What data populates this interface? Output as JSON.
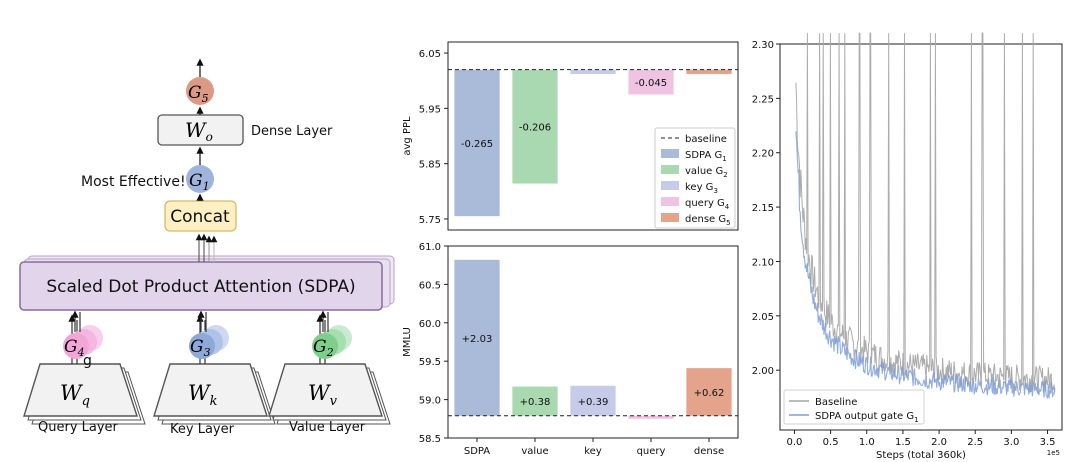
{
  "diagram": {
    "layers": {
      "query": "Query Layer",
      "key": "Key Layer",
      "value": "Value Layer",
      "dense": "Dense Layer"
    },
    "weights": {
      "wq": "W",
      "wq_sub": "q",
      "wk": "W",
      "wk_sub": "k",
      "wv": "W",
      "wv_sub": "v",
      "wo": "W",
      "wo_sub": "o"
    },
    "gates": {
      "g1": "G",
      "g1_sub": "1",
      "g2": "G",
      "g2_sub": "2",
      "g3": "G",
      "g3_sub": "3",
      "g4": "G",
      "g4_sub": "4",
      "g5": "G",
      "g5_sub": "5"
    },
    "stray_glyph": "g",
    "sdpa_label": "Scaled Dot Product Attention (SDPA)",
    "concat_label": "Concat",
    "most_effective": "Most Effective!",
    "colors": {
      "g1": "#9fb4dc",
      "g2": "#7fcf8c",
      "g3": "#8ea8d8",
      "g4": "#f2a6d8",
      "g5": "#dc9a84",
      "sdpa": "#e2d4ea",
      "concat": "#fdf0c2"
    }
  },
  "chart_data": [
    {
      "type": "bar",
      "title": "",
      "ylabel": "avg PPL",
      "ylim": [
        5.73,
        6.07
      ],
      "yticks": [
        "5.75",
        "5.85",
        "5.95",
        "6.05"
      ],
      "ytick_values": [
        5.75,
        5.85,
        5.95,
        6.05
      ],
      "baseline": 6.02,
      "categories": [
        "SDPA",
        "value",
        "key",
        "query",
        "dense"
      ],
      "deltas": [
        -0.265,
        -0.206,
        -0.008,
        -0.045,
        -0.008
      ],
      "labels": [
        "-0.265",
        "-0.206",
        "",
        "-0.045",
        ""
      ],
      "colors": [
        "#a9bbd9",
        "#a9d9b0",
        "#c5cbe8",
        "#f1c3e3",
        "#e4a48c"
      ],
      "legend": [
        {
          "name": "baseline",
          "sub": ""
        },
        {
          "name": "SDPA G",
          "sub": "1"
        },
        {
          "name": "value G",
          "sub": "2"
        },
        {
          "name": "key G",
          "sub": "3"
        },
        {
          "name": "query G",
          "sub": "4"
        },
        {
          "name": "dense G",
          "sub": "5"
        }
      ]
    },
    {
      "type": "bar",
      "ylabel": "MMLU",
      "ylim": [
        58.5,
        61.0
      ],
      "yticks": [
        "58.5",
        "59.0",
        "59.5",
        "60.0",
        "60.5",
        "61.0"
      ],
      "ytick_values": [
        58.5,
        59.0,
        59.5,
        60.0,
        60.5,
        61.0
      ],
      "baseline": 58.79,
      "categories": [
        "SDPA",
        "value",
        "key",
        "query",
        "dense"
      ],
      "xtick_labels": [
        "SDPA",
        "value",
        "key",
        "query",
        "dense"
      ],
      "deltas": [
        2.03,
        0.38,
        0.39,
        -0.04,
        0.62
      ],
      "labels": [
        "+2.03",
        "+0.38",
        "+0.39",
        "",
        "+0.62"
      ],
      "colors": [
        "#a9bbd9",
        "#a9d9b0",
        "#c5cbe8",
        "#f1c3e3",
        "#e4a48c"
      ]
    },
    {
      "type": "line",
      "xlabel": "Steps (total 360k)",
      "x_multiplier": "1e5",
      "xlim": [
        -0.2,
        3.7
      ],
      "ylim": [
        1.945,
        2.3
      ],
      "xticks": [
        "0.0",
        "0.5",
        "1.0",
        "1.5",
        "2.0",
        "2.5",
        "3.0",
        "3.5"
      ],
      "xtick_values": [
        0.0,
        0.5,
        1.0,
        1.5,
        2.0,
        2.5,
        3.0,
        3.5
      ],
      "yticks": [
        "2.00",
        "2.05",
        "2.10",
        "2.15",
        "2.20",
        "2.25",
        "2.30"
      ],
      "ytick_values": [
        2.0,
        2.05,
        2.1,
        2.15,
        2.2,
        2.25,
        2.3
      ],
      "series": [
        {
          "name": "Baseline",
          "sub": "",
          "color": "#a3a3a3",
          "start": 2.3,
          "end": 1.978,
          "noise": 0.012,
          "spikes": [
            0.18,
            0.35,
            0.4,
            0.5,
            0.62,
            0.7,
            0.9,
            1.05,
            1.3,
            1.52,
            1.88,
            1.95,
            2.45,
            2.6,
            2.9,
            3.15,
            3.3
          ]
        },
        {
          "name": "SDPA output gate G",
          "sub": "1",
          "color": "#7f9fd6",
          "start": 2.26,
          "end": 1.97,
          "noise": 0.008,
          "spikes": []
        }
      ]
    }
  ]
}
